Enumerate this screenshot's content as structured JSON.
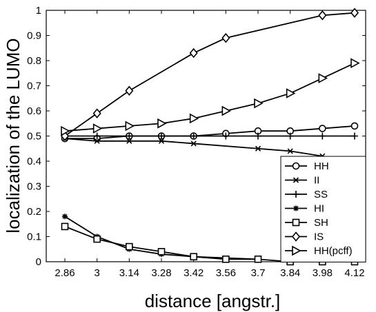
{
  "chart_data": {
    "type": "line",
    "title": "",
    "xlabel": "distance [angstr.]",
    "ylabel": "localization of the LUMO",
    "x": [
      2.86,
      3,
      3.14,
      3.28,
      3.42,
      3.56,
      3.7,
      3.84,
      3.98,
      4.12
    ],
    "x_tick_labels": [
      "2.86",
      "3",
      "3.14",
      "3.28",
      "3.42",
      "3.56",
      "3.7",
      "3.84",
      "3.98",
      "4.12"
    ],
    "y_ticks": [
      0,
      0.1,
      0.2,
      0.3,
      0.4,
      0.5,
      0.6,
      0.7,
      0.8,
      0.9,
      1
    ],
    "y_tick_labels": [
      "0",
      "0.1",
      "0.2",
      "0.3",
      "0.4",
      "0.5",
      "0.6",
      "0.7",
      "0.8",
      "0.9",
      "1"
    ],
    "xlim": [
      2.86,
      4.12
    ],
    "ylim": [
      0,
      1
    ],
    "grid": false,
    "legend_position": "bottom-right",
    "series": [
      {
        "name": "HH",
        "marker": "circle",
        "values": [
          0.49,
          0.49,
          0.5,
          0.5,
          0.5,
          0.51,
          0.52,
          0.52,
          0.53,
          0.54
        ]
      },
      {
        "name": "II",
        "marker": "x",
        "values": [
          0.49,
          0.48,
          0.48,
          0.48,
          0.47,
          null,
          0.45,
          0.44,
          0.42,
          0.39
        ]
      },
      {
        "name": "SS",
        "marker": "plus",
        "values": [
          0.5,
          0.5,
          0.5,
          0.5,
          0.5,
          0.5,
          0.5,
          0.5,
          0.5,
          0.5
        ]
      },
      {
        "name": "HI",
        "marker": "star",
        "values": [
          0.18,
          0.1,
          0.05,
          0.03,
          0.02,
          null,
          0.01,
          null,
          null,
          null
        ]
      },
      {
        "name": "SH",
        "marker": "square",
        "values": [
          0.14,
          0.09,
          0.06,
          0.04,
          0.02,
          0.01,
          0.01,
          0.0,
          0.0,
          0.0
        ]
      },
      {
        "name": "IS",
        "marker": "diamond",
        "values": [
          0.5,
          0.59,
          0.68,
          null,
          0.83,
          0.89,
          null,
          null,
          0.98,
          0.99
        ]
      },
      {
        "name": "HH(pcff)",
        "marker": "triangle-right",
        "values": [
          0.52,
          0.53,
          0.54,
          0.55,
          0.57,
          0.6,
          0.63,
          0.67,
          0.73,
          0.79
        ]
      }
    ]
  }
}
